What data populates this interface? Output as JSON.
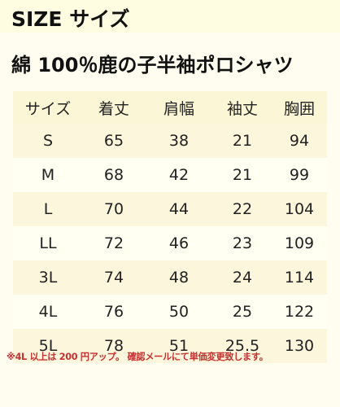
{
  "header": {
    "title": "SIZE サイズ"
  },
  "product": {
    "title": "綿 100％鹿の子半袖ポロシャツ"
  },
  "table": {
    "headers": [
      "サイズ",
      "着丈",
      "肩幅",
      "袖丈",
      "胸囲"
    ],
    "rows": [
      [
        "S",
        "65",
        "38",
        "21",
        "94"
      ],
      [
        "M",
        "68",
        "42",
        "21",
        "99"
      ],
      [
        "L",
        "70",
        "44",
        "22",
        "104"
      ],
      [
        "LL",
        "72",
        "46",
        "23",
        "109"
      ],
      [
        "3L",
        "74",
        "48",
        "24",
        "114"
      ],
      [
        "4L",
        "76",
        "50",
        "25",
        "122"
      ],
      [
        "5L",
        "78",
        "51",
        "25.5",
        "130"
      ]
    ]
  },
  "footnote": {
    "text": "※4L 以上は 200 円アップ。 確認メールにて単価変更致します。"
  },
  "colors": {
    "footnote": "#c63030",
    "background": "#fffdf0",
    "header_band": "#fffde1"
  }
}
